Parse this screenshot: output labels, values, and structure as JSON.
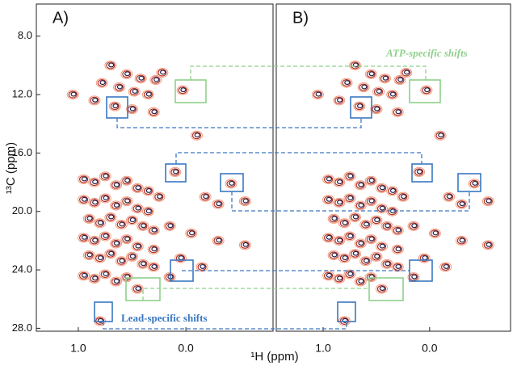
{
  "chart_data": [
    {
      "type": "contour",
      "panel_label": "A)",
      "ylabel": "¹³C (ppm)",
      "xlabel": "¹H (ppm)",
      "xlim": [
        1.39,
        -0.81
      ],
      "ylim": [
        5.8,
        28.2
      ],
      "xticks": [
        {
          "value": 1,
          "label": "1.0"
        },
        {
          "value": 0,
          "label": "0.0"
        }
      ],
      "yticks": [
        {
          "value": 8,
          "label": "8.0"
        },
        {
          "value": 12,
          "label": "12.0"
        },
        {
          "value": 16,
          "label": "16.0"
        },
        {
          "value": 20,
          "label": "20.0"
        },
        {
          "value": 24,
          "label": "24.0"
        },
        {
          "value": 28,
          "label": "28.0"
        }
      ],
      "annotations": [
        "ATP-specific shifts",
        "Lead-specific shifts"
      ],
      "x": [
        0.78,
        0.7,
        0.62,
        0.55,
        0.48,
        0.42,
        0.35,
        0.28,
        0.22,
        0.66,
        0.5,
        0.03,
        1.05,
        0.85,
        0.3,
        -0.1,
        0.1,
        -0.42,
        -0.18,
        -0.3,
        -0.55,
        0.15,
        -0.05,
        -0.3,
        -0.55,
        0.05,
        -0.15,
        0.3,
        0.45,
        0.15,
        0.8,
        0.95,
        0.85,
        0.75,
        0.65,
        0.55,
        0.45,
        0.35,
        0.25,
        0.95,
        0.85,
        0.75,
        0.65,
        0.55,
        0.45,
        0.35,
        0.9,
        0.8,
        0.7,
        0.6,
        0.5,
        0.4,
        0.3,
        0.95,
        0.85,
        0.75,
        0.65,
        0.55,
        0.45,
        0.9,
        0.8,
        0.7,
        0.6,
        0.5,
        0.4,
        0.3,
        0.95,
        0.85,
        0.75,
        0.65,
        0.55
      ],
      "y": [
        11.2,
        10.0,
        11.5,
        10.6,
        11.8,
        10.9,
        12.0,
        11.0,
        10.5,
        12.8,
        13.0,
        11.7,
        12.0,
        12.4,
        13.2,
        14.8,
        17.3,
        18.1,
        19.0,
        19.5,
        19.3,
        21.0,
        21.5,
        22.0,
        22.3,
        23.2,
        23.8,
        22.6,
        25.3,
        24.5,
        27.5,
        17.8,
        18.0,
        17.6,
        18.2,
        17.9,
        18.4,
        18.6,
        19.0,
        19.2,
        19.4,
        19.1,
        19.6,
        19.3,
        19.8,
        20.0,
        20.5,
        20.8,
        20.4,
        20.9,
        20.6,
        21.0,
        21.3,
        21.8,
        22.0,
        21.7,
        22.2,
        21.9,
        22.4,
        23.0,
        23.2,
        22.9,
        23.4,
        23.1,
        23.6,
        23.8,
        24.4,
        24.6,
        24.3,
        24.8,
        24.5
      ]
    },
    {
      "type": "contour",
      "panel_label": "B)",
      "xlim": [
        1.44,
        -0.76
      ],
      "ylim": [
        5.8,
        28.2
      ],
      "xticks": [
        {
          "value": 1,
          "label": "1.0"
        },
        {
          "value": 0,
          "label": "0.0"
        }
      ],
      "x": [
        0.78,
        0.7,
        0.62,
        0.55,
        0.48,
        0.42,
        0.35,
        0.28,
        0.22,
        0.66,
        0.5,
        0.03,
        1.05,
        0.85,
        0.3,
        -0.1,
        0.1,
        -0.42,
        -0.18,
        -0.3,
        -0.55,
        0.15,
        -0.05,
        -0.3,
        -0.55,
        0.05,
        -0.15,
        0.3,
        0.45,
        0.15,
        0.8,
        0.95,
        0.85,
        0.75,
        0.65,
        0.55,
        0.45,
        0.35,
        0.25,
        0.95,
        0.85,
        0.75,
        0.65,
        0.55,
        0.45,
        0.35,
        0.9,
        0.8,
        0.7,
        0.6,
        0.5,
        0.4,
        0.3,
        0.95,
        0.85,
        0.75,
        0.65,
        0.55,
        0.45,
        0.9,
        0.8,
        0.7,
        0.6,
        0.5,
        0.4,
        0.3,
        0.95,
        0.85,
        0.75,
        0.65,
        0.55
      ],
      "y": [
        11.2,
        10.0,
        11.5,
        10.6,
        11.8,
        10.9,
        12.0,
        11.0,
        10.5,
        12.8,
        13.0,
        11.7,
        12.0,
        12.4,
        13.2,
        14.8,
        17.3,
        18.1,
        19.0,
        19.5,
        19.3,
        21.0,
        21.5,
        22.0,
        22.3,
        23.2,
        23.8,
        22.6,
        25.3,
        24.5,
        27.5,
        17.8,
        18.0,
        17.6,
        18.2,
        17.9,
        18.4,
        18.6,
        19.0,
        19.2,
        19.4,
        19.1,
        19.6,
        19.3,
        19.8,
        20.0,
        20.5,
        20.8,
        20.4,
        20.9,
        20.6,
        21.0,
        21.3,
        21.8,
        22.0,
        21.7,
        22.2,
        21.9,
        22.4,
        23.0,
        23.2,
        22.9,
        23.4,
        23.1,
        23.6,
        23.8,
        24.4,
        24.6,
        24.3,
        24.8,
        24.5
      ]
    }
  ]
}
